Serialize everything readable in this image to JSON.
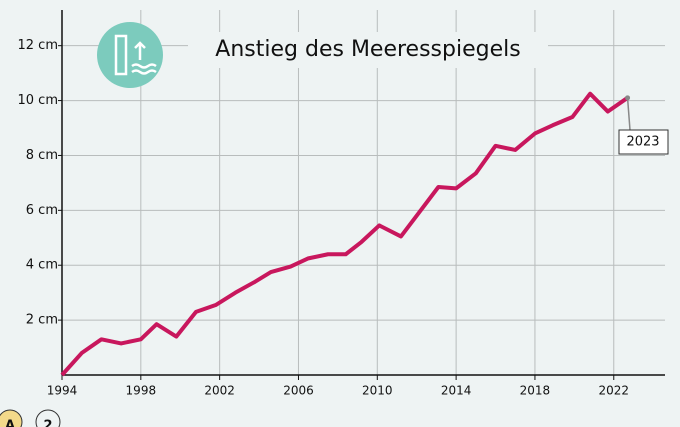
{
  "chart_data": {
    "type": "line",
    "title": "Anstieg des Meeresspiegels",
    "x": [
      1994,
      1995,
      1996,
      1997,
      1998,
      1998.8,
      1999.8,
      2000.8,
      2001.8,
      2002.8,
      2003.8,
      2004.6,
      2005.6,
      2006.5,
      2007.5,
      2008.4,
      2009.2,
      2010.1,
      2011.2,
      2012.1,
      2013.1,
      2014,
      2015,
      2016,
      2017,
      2018,
      2018.9,
      2019.9,
      2020.8,
      2021.7,
      2022.7
    ],
    "series": [
      {
        "color": "#c8175d",
        "values": [
          0,
          0.8,
          1.3,
          1.15,
          1.3,
          1.85,
          1.4,
          2.3,
          2.55,
          3.0,
          3.4,
          3.75,
          3.95,
          4.25,
          4.4,
          4.4,
          4.85,
          5.45,
          5.05,
          5.9,
          6.85,
          6.8,
          7.35,
          8.35,
          8.2,
          8.8,
          9.1,
          9.4,
          10.25,
          9.6,
          10.1
        ]
      }
    ],
    "xlim": [
      1994,
      2024.6
    ],
    "xticks": [
      1994,
      1998,
      2002,
      2006,
      2010,
      2014,
      2018,
      2022
    ],
    "ylim": [
      0,
      13.3
    ],
    "yticks": [
      {
        "value": 2,
        "label": "2 cm"
      },
      {
        "value": 4,
        "label": "4 cm"
      },
      {
        "value": 6,
        "label": "6 cm"
      },
      {
        "value": 8,
        "label": "8 cm"
      },
      {
        "value": 10,
        "label": "10 cm"
      },
      {
        "value": 12,
        "label": "12 cm"
      }
    ],
    "grid": true,
    "annotation": "2023",
    "footer_icons": [
      "A",
      "2"
    ]
  }
}
